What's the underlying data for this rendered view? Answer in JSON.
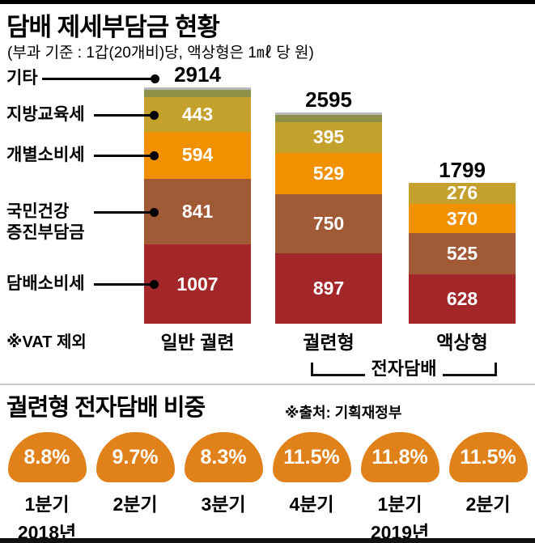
{
  "chart_data": [
    {
      "type": "bar",
      "stacked": true,
      "title": "담배 제세부담금 현황",
      "subtitle": "(부과 기준 : 1갑(20개비)당, 액상형은 1㎖ 당 원)",
      "note": "※VAT 제외",
      "unit": "원",
      "ylim": [
        0,
        3000
      ],
      "grid": false,
      "categories": [
        "일반 궐련",
        "궐련형",
        "액상형"
      ],
      "group_label": "전자담배",
      "group_applies_to": [
        "궐련형",
        "액상형"
      ],
      "totals": [
        2914,
        2595,
        1799
      ],
      "series": [
        {
          "name": "담배소비세",
          "color": "#a32729",
          "values": [
            1007,
            897,
            628
          ]
        },
        {
          "name": "국민건강증진부담금",
          "color": "#a05a35",
          "values": [
            841,
            750,
            525
          ]
        },
        {
          "name": "개별소비세",
          "color": "#f19000",
          "values": [
            594,
            529,
            370
          ]
        },
        {
          "name": "지방교육세",
          "color": "#c4a02c",
          "values": [
            443,
            395,
            276
          ]
        },
        {
          "name": "기타",
          "color": "#8e9048",
          "values": [
            29,
            24,
            0
          ]
        }
      ],
      "tax_labels": [
        {
          "text": "기타"
        },
        {
          "text": "지방교육세"
        },
        {
          "text": "개별소비세"
        },
        {
          "text": "국민건강",
          "text2": "증진부담금"
        },
        {
          "text": "담배소비세"
        }
      ]
    },
    {
      "type": "bar",
      "title": "궐련형 전자담배 비중",
      "source": "※출처: 기획재정부",
      "unit": "%",
      "badge_color": "#e0811a",
      "categories": [
        "2018년 1분기",
        "2018년 2분기",
        "2018년 3분기",
        "2018년 4분기",
        "2019년 1분기",
        "2019년 2분기"
      ],
      "values": [
        8.8,
        9.7,
        8.3,
        11.5,
        11.8,
        11.5
      ],
      "items": [
        {
          "value": "8.8%",
          "quarter": "1분기",
          "year": "2018년"
        },
        {
          "value": "9.7%",
          "quarter": "2분기"
        },
        {
          "value": "8.3%",
          "quarter": "3분기"
        },
        {
          "value": "11.5%",
          "quarter": "4분기"
        },
        {
          "value": "11.8%",
          "quarter": "1분기",
          "year": "2019년"
        },
        {
          "value": "11.5%",
          "quarter": "2분기"
        }
      ]
    }
  ]
}
